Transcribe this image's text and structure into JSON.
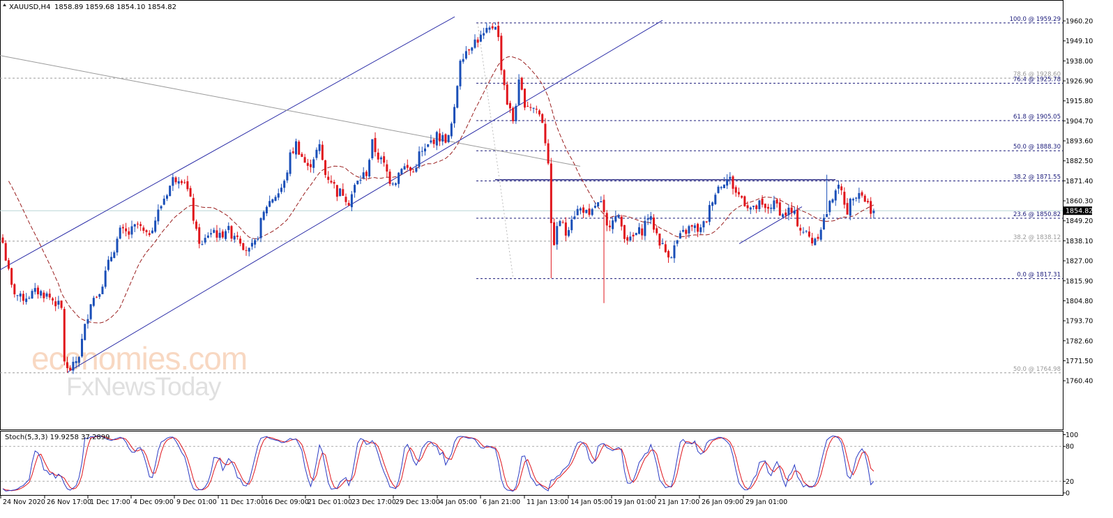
{
  "window": {
    "symbol": "XAUUSD,H4",
    "ohlc": "1858.89 1859.68 1854.10 1854.82"
  },
  "indicator": {
    "label": "Stoch(5,3,3) 19.9258 37.2899",
    "levels": [
      80,
      20
    ],
    "axis_ticks": [
      "100",
      "80",
      "20",
      "0"
    ]
  },
  "watermark": {
    "brand": "economies.com",
    "brand2": "FxNewsToday"
  },
  "colors": {
    "bull": "#1a4fb8",
    "bear": "#e0151c",
    "ma": "#9a1f1f",
    "channel": "#2d2fa8",
    "fib": "#1a1a7a",
    "grey": "#9a9a9a",
    "stoch_main": "#2a3bc4",
    "stoch_signal": "#e0151c"
  },
  "chart_data": {
    "type": "candlestick",
    "timeframe": "H4",
    "price_axis": {
      "ticks": [
        "1960.20",
        "1949.10",
        "1938.00",
        "1926.90",
        "1915.80",
        "1904.70",
        "1893.60",
        "1882.50",
        "1871.40",
        "1860.30",
        "1849.20",
        "1838.10",
        "1827.00",
        "1815.90",
        "1804.80",
        "1793.70",
        "1782.60",
        "1771.50",
        "1760.40"
      ],
      "ylim": [
        1758,
        1966
      ],
      "current_price": "1854.82"
    },
    "time_axis": [
      "24 Nov 2020",
      "26 Nov 17:00",
      "1 Dec 17:00",
      "4 Dec 09:00",
      "9 Dec 01:00",
      "11 Dec 17:00",
      "16 Dec 09:00",
      "21 Dec 01:00",
      "23 Dec 17:00",
      "29 Dec 13:00",
      "4 Jan 05:00",
      "6 Jan 21:00",
      "11 Jan 13:00",
      "14 Jan 05:00",
      "19 Jan 01:00",
      "21 Jan 17:00",
      "26 Jan 09:00",
      "29 Jan 01:00"
    ],
    "fib_levels": [
      {
        "label": "100.0 @ 1959.29",
        "price": 1959.29,
        "style": "blue"
      },
      {
        "label": "78.6 @ 1928.60",
        "price": 1928.6,
        "style": "grey"
      },
      {
        "label": "76.4 @ 1925.78",
        "price": 1925.78,
        "style": "blue"
      },
      {
        "label": "61.8 @ 1905.05",
        "price": 1905.05,
        "style": "blue"
      },
      {
        "label": "50.0 @ 1888.30",
        "price": 1888.3,
        "style": "blue"
      },
      {
        "label": "38.2 @ 1871.55",
        "price": 1871.55,
        "style": "blue"
      },
      {
        "label": "23.6 @ 1850.82",
        "price": 1850.82,
        "style": "blue"
      },
      {
        "label": "38.2 @ 1838.12",
        "price": 1838.12,
        "style": "grey"
      },
      {
        "label": "0.0 @ 1817.31",
        "price": 1817.31,
        "style": "blue"
      },
      {
        "label": "50.0 @ 1764.98",
        "price": 1764.98,
        "style": "grey"
      }
    ],
    "resistance": 1872.0,
    "anchors": [
      [
        0,
        1837
      ],
      [
        3,
        1812
      ],
      [
        6,
        1806
      ],
      [
        9,
        1808
      ],
      [
        12,
        1810
      ],
      [
        15,
        1808
      ],
      [
        18,
        1804
      ],
      [
        20,
        1800
      ],
      [
        21,
        1772
      ],
      [
        22,
        1766
      ],
      [
        24,
        1768
      ],
      [
        26,
        1775
      ],
      [
        28,
        1790
      ],
      [
        30,
        1805
      ],
      [
        32,
        1808
      ],
      [
        34,
        1815
      ],
      [
        37,
        1830
      ],
      [
        40,
        1843
      ],
      [
        43,
        1842
      ],
      [
        46,
        1847
      ],
      [
        49,
        1840
      ],
      [
        52,
        1850
      ],
      [
        55,
        1862
      ],
      [
        58,
        1872
      ],
      [
        60,
        1874
      ],
      [
        62,
        1872
      ],
      [
        64,
        1860
      ],
      [
        66,
        1842
      ],
      [
        68,
        1835
      ],
      [
        70,
        1842
      ],
      [
        72,
        1844
      ],
      [
        74,
        1840
      ],
      [
        76,
        1845
      ],
      [
        78,
        1842
      ],
      [
        80,
        1842
      ],
      [
        82,
        1836
      ],
      [
        84,
        1832
      ],
      [
        86,
        1836
      ],
      [
        88,
        1848
      ],
      [
        90,
        1858
      ],
      [
        92,
        1862
      ],
      [
        94,
        1865
      ],
      [
        96,
        1870
      ],
      [
        98,
        1885
      ],
      [
        100,
        1892
      ],
      [
        102,
        1885
      ],
      [
        104,
        1878
      ],
      [
        106,
        1885
      ],
      [
        108,
        1890
      ],
      [
        110,
        1875
      ],
      [
        112,
        1872
      ],
      [
        114,
        1865
      ],
      [
        116,
        1865
      ],
      [
        118,
        1860
      ],
      [
        120,
        1868
      ],
      [
        122,
        1873
      ],
      [
        124,
        1876
      ],
      [
        126,
        1892
      ],
      [
        128,
        1885
      ],
      [
        130,
        1880
      ],
      [
        132,
        1872
      ],
      [
        134,
        1872
      ],
      [
        136,
        1880
      ],
      [
        138,
        1878
      ],
      [
        140,
        1876
      ],
      [
        142,
        1886
      ],
      [
        144,
        1888
      ],
      [
        146,
        1893
      ],
      [
        148,
        1896
      ],
      [
        150,
        1895
      ],
      [
        152,
        1895
      ],
      [
        154,
        1910
      ],
      [
        156,
        1940
      ],
      [
        158,
        1944
      ],
      [
        160,
        1948
      ],
      [
        162,
        1950
      ],
      [
        164,
        1952
      ],
      [
        166,
        1955
      ],
      [
        168,
        1959
      ],
      [
        169,
        1950
      ],
      [
        170,
        1935
      ],
      [
        172,
        1915
      ],
      [
        174,
        1905
      ],
      [
        176,
        1925
      ],
      [
        178,
        1915
      ],
      [
        180,
        1913
      ],
      [
        182,
        1911
      ],
      [
        184,
        1905
      ],
      [
        186,
        1883
      ],
      [
        187,
        1845
      ],
      [
        188,
        1838
      ],
      [
        190,
        1850
      ],
      [
        192,
        1842
      ],
      [
        194,
        1852
      ],
      [
        196,
        1855
      ],
      [
        198,
        1856
      ],
      [
        200,
        1850
      ],
      [
        202,
        1858
      ],
      [
        204,
        1858
      ],
      [
        206,
        1845
      ],
      [
        208,
        1852
      ],
      [
        210,
        1850
      ],
      [
        212,
        1842
      ],
      [
        214,
        1838
      ],
      [
        216,
        1842
      ],
      [
        218,
        1844
      ],
      [
        220,
        1852
      ],
      [
        222,
        1846
      ],
      [
        224,
        1838
      ],
      [
        226,
        1832
      ],
      [
        228,
        1831
      ],
      [
        230,
        1838
      ],
      [
        232,
        1842
      ],
      [
        234,
        1845
      ],
      [
        236,
        1845
      ],
      [
        238,
        1844
      ],
      [
        240,
        1850
      ],
      [
        242,
        1862
      ],
      [
        244,
        1868
      ],
      [
        246,
        1872
      ],
      [
        248,
        1872
      ],
      [
        250,
        1865
      ],
      [
        252,
        1862
      ],
      [
        254,
        1858
      ],
      [
        256,
        1855
      ],
      [
        258,
        1858
      ],
      [
        260,
        1855
      ],
      [
        262,
        1858
      ],
      [
        264,
        1858
      ],
      [
        266,
        1852
      ],
      [
        268,
        1855
      ],
      [
        270,
        1852
      ],
      [
        272,
        1845
      ],
      [
        274,
        1842
      ],
      [
        276,
        1838
      ],
      [
        278,
        1842
      ],
      [
        280,
        1850
      ],
      [
        282,
        1858
      ],
      [
        284,
        1868
      ],
      [
        286,
        1865
      ],
      [
        288,
        1855
      ],
      [
        290,
        1864
      ],
      [
        292,
        1866
      ],
      [
        294,
        1861
      ],
      [
        296,
        1856
      ],
      [
        297,
        1854.82
      ]
    ],
    "ma_period": 20,
    "stoch": {
      "k": 5,
      "d": 3,
      "slowing": 3,
      "main": 19.9258,
      "signal": 37.2899
    }
  }
}
